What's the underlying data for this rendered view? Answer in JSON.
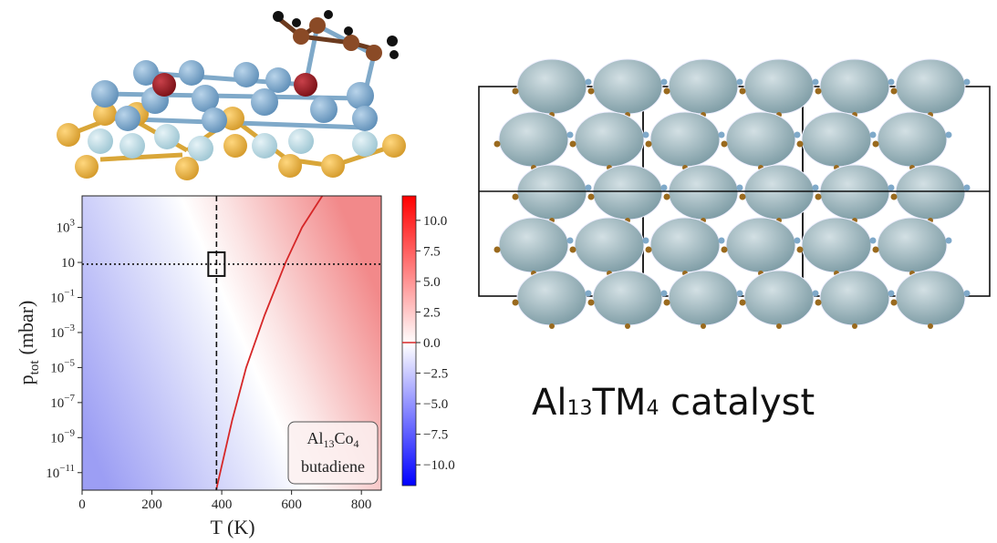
{
  "chart_data": {
    "type": "phase-diagram",
    "xlabel": "T (K)",
    "ylabel": {
      "main": "p",
      "sub": "tot",
      "unit": "(mbar)"
    },
    "xlim": [
      0,
      857
    ],
    "xticks": [
      0,
      200,
      400,
      600,
      800
    ],
    "ylim": [
      1e-12,
      63000
    ],
    "log_y": true,
    "yticks": [
      {
        "value": 1e-11,
        "label": "10",
        "exponent": "−11"
      },
      {
        "value": 1e-09,
        "label": "10",
        "exponent": "−9"
      },
      {
        "value": 1e-07,
        "label": "10",
        "exponent": "−7"
      },
      {
        "value": 1e-05,
        "label": "10",
        "exponent": "−5"
      },
      {
        "value": 0.001,
        "label": "10",
        "exponent": "−3"
      },
      {
        "value": 0.1,
        "label": "10",
        "exponent": "−1"
      },
      10,
      {
        "value": 1000,
        "label": "10",
        "exponent": "3"
      }
    ],
    "clim": [
      -11.7,
      12
    ],
    "cticks": [
      {
        "value": -10,
        "label": "−10.0"
      },
      {
        "value": -7.5,
        "label": "−7.5"
      },
      {
        "value": -5,
        "label": "−5.0"
      },
      {
        "value": -2.5,
        "label": "−2.5"
      },
      {
        "value": 0,
        "label": "0.0"
      },
      {
        "value": 2.5,
        "label": "2.5"
      },
      {
        "value": 5,
        "label": "5.0"
      },
      {
        "value": 7.5,
        "label": "7.5"
      },
      {
        "value": 10,
        "label": "10.0"
      }
    ],
    "zero_contour": {
      "color": "#d62728",
      "x": [
        384,
        430,
        470,
        523,
        583,
        630,
        688
      ],
      "y": [
        1e-12,
        1e-08,
        1e-05,
        0.01,
        10,
        1000,
        63000
      ]
    },
    "T_line": 385,
    "p_line": 8,
    "annotation": {
      "formula": [
        "Al",
        "13",
        "Co",
        "4"
      ],
      "text": "butadiene"
    }
  },
  "caption": {
    "formula": [
      "Al",
      "13",
      "TM",
      "4"
    ],
    "text": " catalyst"
  }
}
